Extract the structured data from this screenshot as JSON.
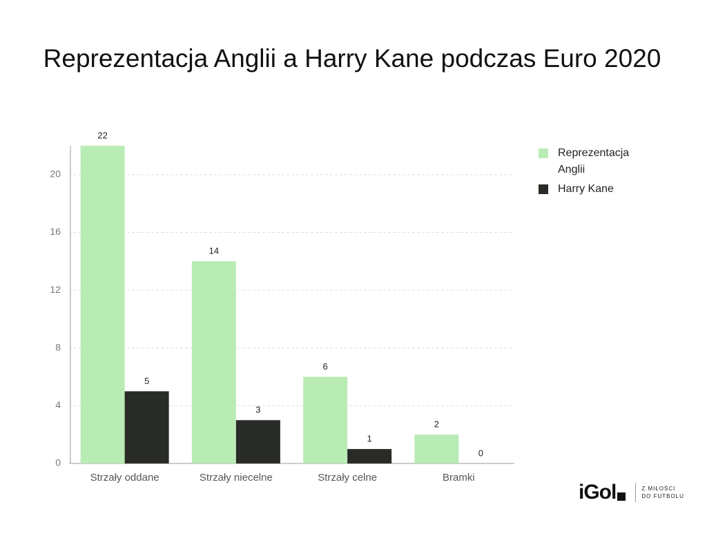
{
  "chart_data": {
    "type": "bar",
    "title": "Reprezentacja Anglii a Harry Kane podczas Euro 2020",
    "categories": [
      "Strzały oddane",
      "Strzały niecelne",
      "Strzały celne",
      "Bramki"
    ],
    "series": [
      {
        "name": "Reprezentacja Anglii",
        "color": "#b9ebb4",
        "values": [
          22,
          14,
          6,
          2
        ]
      },
      {
        "name": "Harry Kane",
        "color": "#282b26",
        "values": [
          5,
          3,
          1,
          0
        ]
      }
    ],
    "ylim": [
      0,
      22
    ],
    "yticks": [
      0,
      4,
      8,
      12,
      16,
      20
    ],
    "grid": true,
    "legend": "right"
  },
  "logo": {
    "name": "iGol",
    "tagline": [
      "Z MIŁOŚCI",
      "DO FUTBOLU"
    ]
  }
}
